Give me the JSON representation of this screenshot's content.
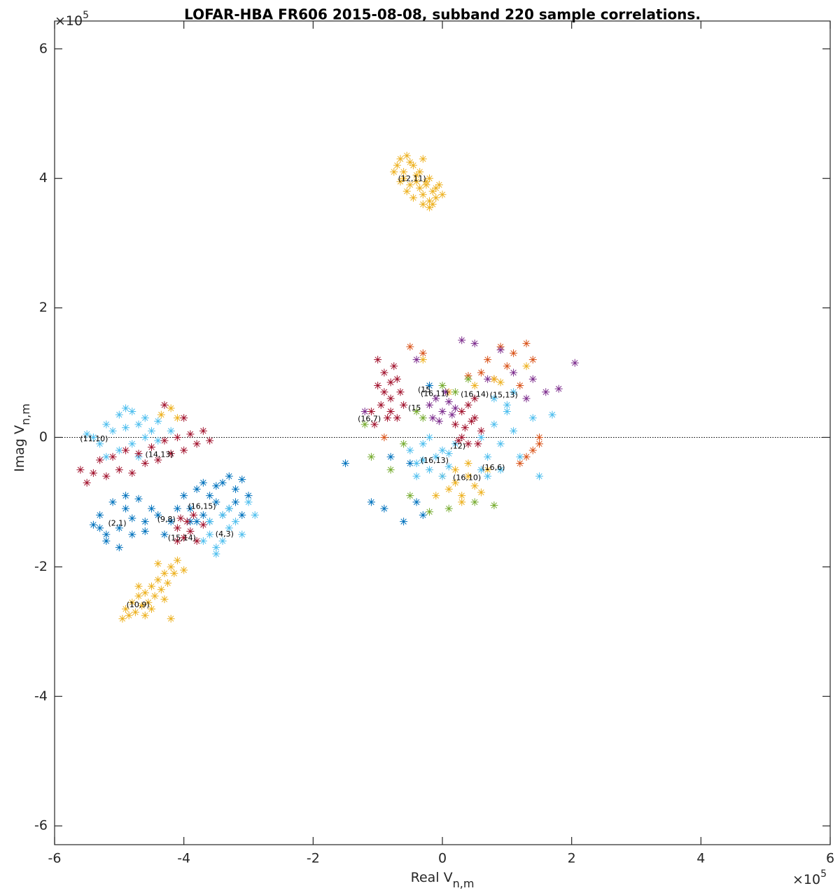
{
  "chart_data": {
    "type": "scatter",
    "title": "LOFAR-HBA FR606 2015-08-08, subband 220 sample correlations.",
    "x_label": {
      "main": "Real V",
      "sub": "n,m"
    },
    "y_label": {
      "main": "Imag V",
      "sub": "n,m"
    },
    "x_exponent": {
      "base": "×10",
      "power": "5"
    },
    "y_exponent": {
      "base": "×10",
      "power": "5"
    },
    "xlim": [
      -6,
      6
    ],
    "ylim": [
      -6.29,
      6.43
    ],
    "xticks": [
      -6,
      -4,
      -2,
      0,
      2,
      4,
      6
    ],
    "yticks": [
      -6,
      -4,
      -2,
      0,
      2,
      4,
      6
    ],
    "reference_line_y": 0,
    "grid": false,
    "marker": "asterisk",
    "series": [
      {
        "color": "#0072bd",
        "x": [
          -5.4,
          -5.3,
          -5.2,
          -5.1,
          -5.0,
          -4.9,
          -4.8,
          -4.7,
          -4.6,
          -4.5,
          -5.2,
          -5.0,
          -4.8,
          -4.6,
          -5.3,
          -4.9,
          -4.4,
          -4.3,
          -4.2,
          -4.1,
          -4.0,
          -3.9,
          -3.8,
          -3.7,
          -3.6,
          -3.5,
          -3.4,
          -3.3,
          -3.2,
          -3.1,
          -3.8,
          -3.6,
          -3.4,
          -3.2,
          -3.0,
          -3.5,
          -3.3,
          -3.7,
          -3.9,
          -3.1,
          -1.5,
          -1.1,
          -0.9,
          -0.6,
          -0.5,
          -0.3,
          -0.8,
          -0.4,
          -0.2
        ],
        "y": [
          -1.35,
          -1.2,
          -1.5,
          -1.0,
          -1.4,
          -1.1,
          -1.5,
          -0.95,
          -1.3,
          -1.1,
          -1.6,
          -1.7,
          -1.25,
          -1.45,
          -1.4,
          -0.9,
          -1.2,
          -1.5,
          -1.3,
          -1.1,
          -0.9,
          -1.1,
          -0.8,
          -1.2,
          -0.9,
          -1.0,
          -0.7,
          -1.1,
          -0.8,
          -0.65,
          -1.3,
          -1.3,
          -1.2,
          -1.0,
          -0.9,
          -0.75,
          -0.6,
          -0.7,
          -1.3,
          -1.2,
          -0.4,
          -1.0,
          -1.1,
          -1.3,
          -0.4,
          -1.2,
          -0.3,
          -1.0,
          0.8
        ]
      },
      {
        "color": "#d95319",
        "x": [
          0.6,
          0.7,
          0.8,
          0.9,
          1.0,
          1.1,
          1.2,
          1.3,
          1.4,
          1.5,
          1.3,
          1.2,
          0.4,
          -0.5,
          -0.3,
          1.5,
          1.4,
          -0.9
        ],
        "y": [
          1.0,
          1.2,
          0.9,
          1.4,
          1.1,
          1.3,
          0.8,
          1.45,
          1.2,
          -0.1,
          -0.3,
          -0.4,
          0.95,
          1.4,
          1.3,
          0.0,
          -0.2,
          0.0
        ]
      },
      {
        "color": "#edb120",
        "x": [
          -0.75,
          -0.7,
          -0.65,
          -0.6,
          -0.55,
          -0.5,
          -0.45,
          -0.4,
          -0.35,
          -0.3,
          -0.25,
          -0.2,
          -0.15,
          -0.1,
          -0.05,
          0.0,
          -0.6,
          -0.5,
          -0.4,
          -0.3,
          -0.2,
          -0.1,
          -0.55,
          -0.45,
          -0.35,
          -0.25,
          -0.15,
          -0.65,
          -0.3,
          -0.2,
          -4.95,
          -4.9,
          -4.85,
          -4.8,
          -4.75,
          -4.7,
          -4.65,
          -4.6,
          -4.55,
          -4.5,
          -4.45,
          -4.4,
          -4.35,
          -4.3,
          -4.25,
          -4.2,
          -4.15,
          -4.1,
          -4.6,
          -4.5,
          -4.4,
          -4.7,
          -4.3,
          -4.2,
          -4.0,
          0.0,
          0.1,
          0.2,
          0.3,
          0.4,
          0.5,
          0.6,
          0.2,
          0.3,
          0.4,
          -0.1,
          0.7,
          0.5,
          0.1,
          0.9,
          1.3,
          -0.3,
          0.8,
          -4.35,
          -4.2,
          -4.1
        ],
        "y": [
          4.1,
          4.2,
          4.3,
          4.0,
          4.35,
          3.9,
          4.2,
          4.05,
          3.85,
          3.75,
          3.95,
          3.65,
          3.8,
          3.7,
          3.9,
          3.75,
          4.1,
          4.25,
          3.95,
          3.6,
          3.55,
          3.85,
          3.8,
          3.7,
          4.1,
          3.9,
          3.6,
          3.95,
          4.3,
          4.0,
          -2.8,
          -2.65,
          -2.75,
          -2.55,
          -2.7,
          -2.45,
          -2.6,
          -2.4,
          -2.55,
          -2.3,
          -2.45,
          -2.2,
          -2.35,
          -2.1,
          -2.25,
          -2.0,
          -2.1,
          -1.9,
          -2.75,
          -2.65,
          -1.95,
          -2.3,
          -2.5,
          -2.8,
          -2.05,
          -0.6,
          -0.8,
          -0.7,
          -0.9,
          -0.6,
          -0.75,
          -0.85,
          -0.5,
          -1.0,
          -0.4,
          -0.9,
          -0.5,
          0.8,
          0.7,
          0.85,
          1.1,
          1.2,
          0.9,
          0.35,
          0.45,
          0.3
        ]
      },
      {
        "color": "#7e2f8e",
        "x": [
          -0.2,
          -0.1,
          0.0,
          0.1,
          0.2,
          -0.15,
          0.05,
          0.15,
          -0.05,
          0.3,
          0.5,
          0.9,
          1.1,
          1.4,
          1.8,
          2.05,
          1.6,
          0.7,
          -1.2,
          -0.4,
          1.3
        ],
        "y": [
          0.5,
          0.6,
          0.4,
          0.55,
          0.45,
          0.3,
          0.7,
          0.35,
          0.25,
          1.5,
          1.45,
          1.35,
          1.0,
          0.9,
          0.75,
          1.15,
          0.7,
          0.9,
          0.4,
          1.2,
          0.6
        ]
      },
      {
        "color": "#77ac30",
        "x": [
          -1.2,
          -1.1,
          -0.6,
          -0.4,
          -0.3,
          0.0,
          0.2,
          0.5,
          0.8,
          -0.5,
          -0.2,
          0.1,
          0.4,
          -0.8
        ],
        "y": [
          0.2,
          -0.3,
          -0.1,
          0.4,
          0.3,
          0.8,
          0.7,
          -1.0,
          -1.05,
          -0.9,
          -1.15,
          -1.1,
          0.9,
          -0.5
        ]
      },
      {
        "color": "#4dbeee",
        "x": [
          -5.4,
          -5.2,
          -5.0,
          -4.8,
          -4.6,
          -4.4,
          -5.3,
          -5.1,
          -4.9,
          -4.7,
          -4.5,
          -5.0,
          -4.8,
          -4.6,
          -4.4,
          -4.2,
          -5.5,
          -5.2,
          -4.9,
          -4.7,
          -3.6,
          -3.5,
          -3.4,
          -3.3,
          -3.2,
          -3.5,
          -3.4,
          -3.3,
          -3.1,
          -3.0,
          -3.6,
          -3.7,
          -2.9,
          -0.5,
          -0.4,
          -0.3,
          -0.2,
          -0.1,
          0.0,
          0.1,
          0.2,
          -0.4,
          -0.2,
          0.0,
          -0.3,
          0.1,
          0.6,
          0.7,
          0.8,
          0.9,
          1.0,
          1.1,
          0.7,
          0.9,
          1.0,
          0.8,
          1.2,
          1.4,
          0.6,
          1.1,
          1.7,
          1.5
        ],
        "y": [
          0.0,
          0.2,
          0.35,
          0.4,
          0.3,
          0.25,
          -0.1,
          0.1,
          0.15,
          0.2,
          0.1,
          -0.2,
          -0.1,
          0.0,
          -0.05,
          0.1,
          0.05,
          -0.3,
          0.45,
          -0.3,
          -1.5,
          -1.7,
          -1.6,
          -1.4,
          -1.3,
          -1.8,
          -1.2,
          -1.1,
          -1.5,
          -1.0,
          -1.3,
          -1.6,
          -1.2,
          -0.2,
          -0.4,
          -0.1,
          -0.5,
          -0.3,
          -0.2,
          -0.45,
          -0.1,
          -0.6,
          0.0,
          -0.6,
          -0.35,
          -0.25,
          0.0,
          -0.3,
          0.2,
          -0.1,
          0.4,
          0.1,
          -0.6,
          -0.5,
          0.5,
          0.6,
          -0.3,
          0.3,
          -0.5,
          0.7,
          0.35,
          -0.6
        ]
      },
      {
        "color": "#a2142f",
        "x": [
          -5.6,
          -5.4,
          -5.2,
          -5.0,
          -4.8,
          -4.6,
          -4.4,
          -4.2,
          -4.0,
          -3.8,
          -3.7,
          -5.3,
          -5.1,
          -4.9,
          -4.7,
          -4.5,
          -4.3,
          -4.1,
          -3.9,
          -3.6,
          -5.5,
          -4.0,
          -4.3,
          -4.1,
          -4.0,
          -3.9,
          -3.8,
          -4.05,
          -3.95,
          -3.85,
          -3.7,
          -4.1,
          -1.1,
          -1.0,
          -0.9,
          -0.8,
          -0.7,
          -0.6,
          -1.05,
          -0.95,
          -0.85,
          -0.75,
          -0.65,
          -0.9,
          -0.8,
          -0.7,
          -1.0,
          -0.8,
          0.2,
          0.3,
          0.4,
          0.5,
          0.6,
          0.3,
          0.4,
          0.5,
          0.35,
          0.45,
          0.25,
          0.55
        ],
        "y": [
          -0.5,
          -0.55,
          -0.6,
          -0.5,
          -0.55,
          -0.4,
          -0.35,
          -0.25,
          -0.2,
          -0.1,
          0.1,
          -0.35,
          -0.3,
          -0.2,
          -0.25,
          -0.15,
          -0.05,
          0.0,
          0.05,
          -0.05,
          -0.7,
          0.3,
          0.5,
          -1.4,
          -1.55,
          -1.45,
          -1.6,
          -1.25,
          -1.3,
          -1.2,
          -1.35,
          -1.6,
          0.4,
          0.8,
          1.0,
          0.6,
          0.9,
          0.5,
          0.2,
          0.5,
          0.3,
          1.1,
          0.7,
          0.7,
          0.4,
          0.3,
          1.2,
          0.85,
          0.2,
          0.4,
          0.5,
          0.3,
          0.1,
          0.0,
          -0.1,
          0.6,
          0.15,
          0.25,
          -0.05,
          -0.1
        ]
      }
    ],
    "annotations": [
      {
        "text": "(12,11)",
        "x": -0.47,
        "y": 3.99
      },
      {
        "text": "(11,10)",
        "x": -5.39,
        "y": -0.03
      },
      {
        "text": "(14,13)",
        "x": -4.38,
        "y": -0.27
      },
      {
        "text": "(2,1)",
        "x": -5.03,
        "y": -1.33
      },
      {
        "text": "(9,8)",
        "x": -4.27,
        "y": -1.27
      },
      {
        "text": "(16,15)",
        "x": -3.72,
        "y": -1.07
      },
      {
        "text": "(15,14)",
        "x": -4.03,
        "y": -1.56
      },
      {
        "text": "(4,3)",
        "x": -3.37,
        "y": -1.5
      },
      {
        "text": "(10,9)",
        "x": -4.71,
        "y": -2.59
      },
      {
        "text": "(16,7)",
        "x": -1.13,
        "y": 0.28
      },
      {
        "text": "(15",
        "x": -0.28,
        "y": 0.73
      },
      {
        "text": "(16,11)",
        "x": -0.12,
        "y": 0.67
      },
      {
        "text": "(16,14)",
        "x": 0.5,
        "y": 0.66
      },
      {
        "text": "(15,13)",
        "x": 0.95,
        "y": 0.65
      },
      {
        "text": "(15",
        "x": -0.43,
        "y": 0.45
      },
      {
        "text": ",12)",
        "x": 0.24,
        "y": -0.14
      },
      {
        "text": "(16,13)",
        "x": -0.12,
        "y": -0.36
      },
      {
        "text": "(16,6)",
        "x": 0.79,
        "y": -0.47
      },
      {
        "text": "(16,10)",
        "x": 0.38,
        "y": -0.63
      }
    ]
  }
}
